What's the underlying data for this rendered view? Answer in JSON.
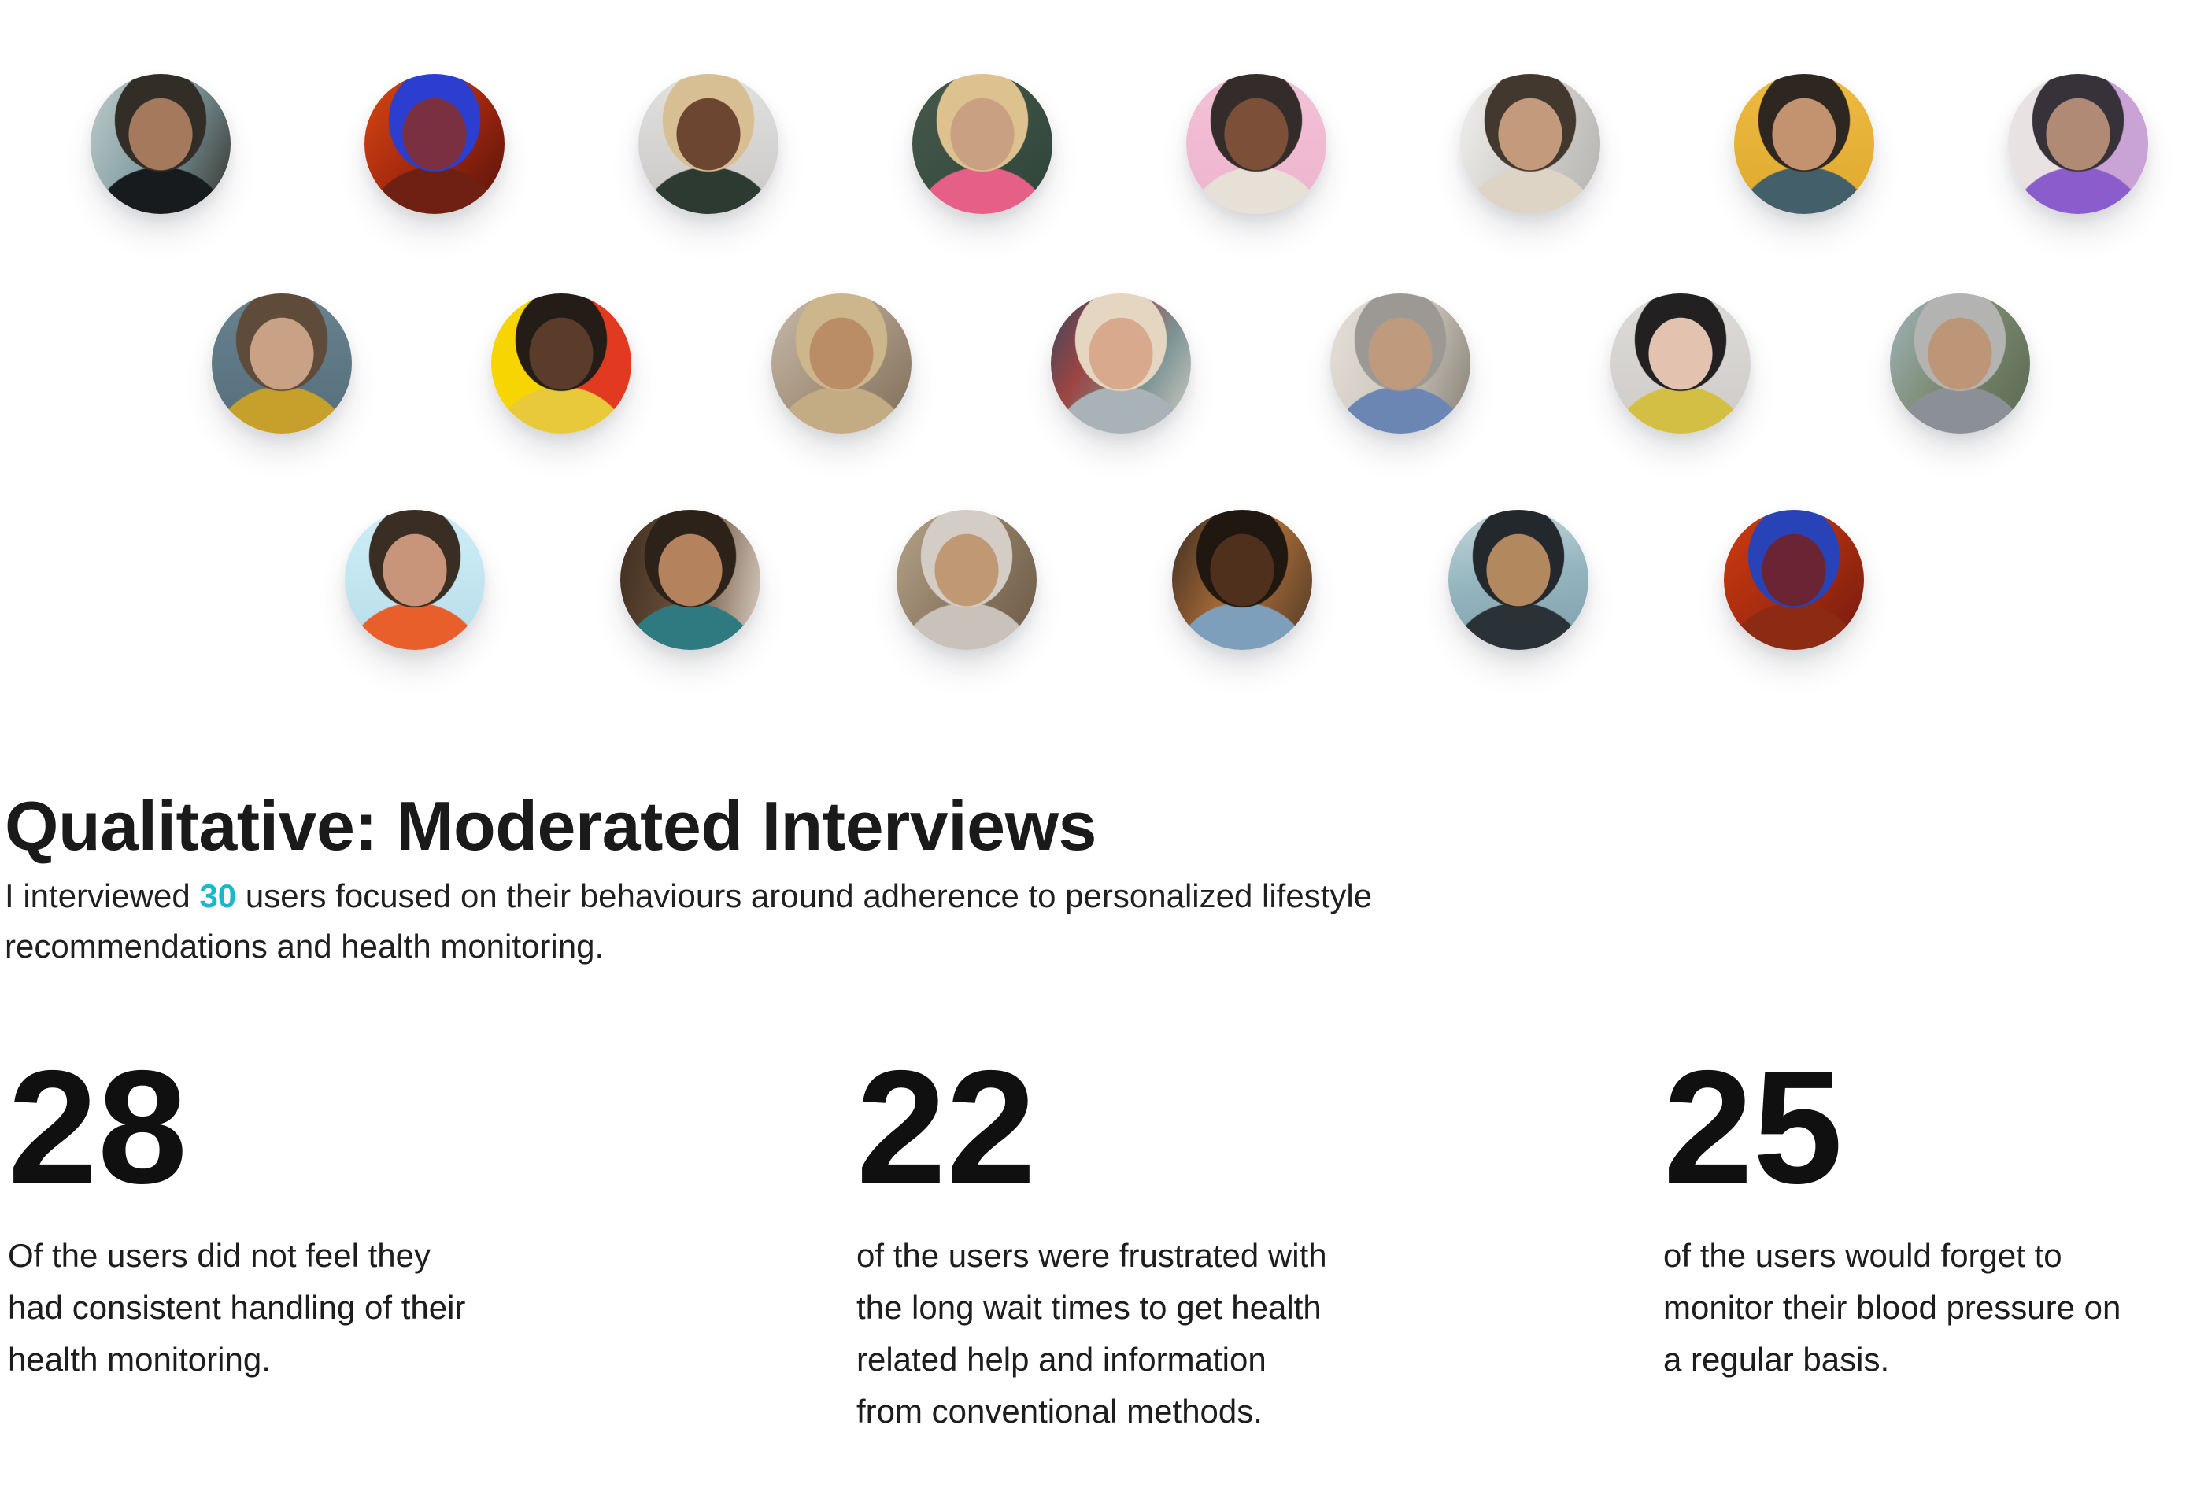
{
  "section": {
    "title": "Qualitative: Moderated Interviews",
    "intro": {
      "prefix": "I interviewed ",
      "highlight": "30",
      "highlight_color": "#1cb8c9",
      "suffix": " users focused on their behaviours around adherence to personalized lifestyle\nrecommendations and health monitoring."
    }
  },
  "stats": [
    {
      "value": "28",
      "description": "Of the users did not feel they\nhad consistent handling of their\nhealth monitoring."
    },
    {
      "value": "22",
      "description": "of the users were frustrated with\nthe long wait times to get health\nrelated help and information\nfrom conventional methods."
    },
    {
      "value": "25",
      "description": "of the users would forget to\nmonitor their blood pressure on\na regular basis."
    }
  ],
  "avatars": {
    "count": 21,
    "rows": [
      [
        {
          "desc": "woman with wet dark hair at the beach",
          "skin": "#a4795c",
          "hair": "#332d27",
          "top": "#171b1e",
          "bg": [
            "#c2cccc",
            "#7e9da1",
            "#35322c"
          ],
          "bg_angle": "115deg"
        },
        {
          "desc": "profile of woman with blue hair bun in red neon light",
          "skin": "#7a3040",
          "hair": "#2b3ed0",
          "top": "#6e2013",
          "bg": [
            "#d8490f",
            "#a3280f",
            "#55130b"
          ],
          "bg_angle": "130deg"
        },
        {
          "desc": "smiling woman with short blonde hair and hoop earrings on gray backdrop",
          "skin": "#6d4632",
          "hair": "#d8be93",
          "top": "#2c3a31",
          "bg": [
            "#e1e1df",
            "#c9c8c6"
          ],
          "bg_angle": "180deg"
        },
        {
          "desc": "woman with blonde afro against dark green wall",
          "skin": "#c9a182",
          "hair": "#ddc18e",
          "top": "#e65f86",
          "bg": [
            "#46594b",
            "#2f443a"
          ],
          "bg_angle": "135deg"
        },
        {
          "desc": "woman with sunglasses on her head against pink backdrop",
          "skin": "#7c5038",
          "hair": "#342c2b",
          "top": "#e7e0d6",
          "bg": [
            "#f3c2d7",
            "#edb4cd"
          ],
          "bg_angle": "180deg"
        },
        {
          "desc": "woman with long dark hair in bright white hallway",
          "skin": "#c49a7c",
          "hair": "#42382e",
          "top": "#ddd4c5",
          "bg": [
            "#f1f0ee",
            "#d2d0cd",
            "#b5b3b0"
          ],
          "bg_angle": "110deg"
        },
        {
          "desc": "smiling woman with long dark hair and red lips against yellow wall",
          "skin": "#c3926f",
          "hair": "#2e2721",
          "top": "#43606a",
          "bg": [
            "#eeba3f",
            "#dfa930"
          ],
          "bg_angle": "180deg"
        },
        {
          "desc": "woman with dark hair and sunglasses in purple outfit",
          "skin": "#b08a74",
          "hair": "#37323a",
          "top": "#8a5ccc",
          "bg": [
            "#e8e3e2",
            "#c9a2d6"
          ],
          "bg_split": true
        }
      ],
      [
        {
          "desc": "woman with brown hair in mustard shirt on slate blue backdrop",
          "skin": "#c9a184",
          "hair": "#5f4b39",
          "top": "#c7a02b",
          "bg": [
            "#68838f",
            "#546d7b"
          ],
          "bg_angle": "180deg"
        },
        {
          "desc": "woman in yellow plaid with sunglasses on yellow and red backdrop",
          "skin": "#5b3b29",
          "hair": "#241d17",
          "top": "#e7c93a",
          "bg": [
            "#f6d503",
            "#e23a20"
          ],
          "bg_split": true
        },
        {
          "desc": "smiling woman in gold headscarf on city street",
          "skin": "#bb8d66",
          "hair": "#cdb68c",
          "top": "#c3ac83",
          "bg": [
            "#c8baaa",
            "#a5947f",
            "#7d6c58"
          ],
          "bg_angle": "135deg"
        },
        {
          "desc": "older woman with platinum curls, cat-eye glasses and red necklace",
          "skin": "#d8a98c",
          "hair": "#e5d6c2",
          "top": "#a9b2b7",
          "bg": [
            "#39465e",
            "#9c4543",
            "#7d9494",
            "#d6d0c6"
          ],
          "bg_angle": "120deg"
        },
        {
          "desc": "older woman with gray hair in blue patterned blouse indoors",
          "skin": "#c09a7d",
          "hair": "#9c9995",
          "top": "#6b86b2",
          "bg": [
            "#e5e1d9",
            "#cfc9bf",
            "#847e74"
          ],
          "bg_angle": "110deg"
        },
        {
          "desc": "woman with black hair flying up wearing yellow floral dress",
          "skin": "#e3c2b0",
          "hair": "#232021",
          "top": "#d4bf45",
          "bg": [
            "#dddbd9",
            "#cecbc8"
          ],
          "bg_angle": "180deg"
        },
        {
          "desc": "smiling woman with long gray hair outdoors",
          "skin": "#bd9678",
          "hair": "#b3b3b1",
          "top": "#8b9097",
          "bg": [
            "#a2b5bd",
            "#78886c",
            "#596851"
          ],
          "bg_angle": "120deg"
        }
      ],
      [
        {
          "desc": "woman in orange sweater with arms behind head under blue sky",
          "skin": "#c9957a",
          "hair": "#3a2d23",
          "top": "#e95f2b",
          "bg": [
            "#cdeef7",
            "#b8dde9"
          ],
          "bg_angle": "180deg"
        },
        {
          "desc": "smiling woman with long dark hair leaning on her hand indoors",
          "skin": "#b5825e",
          "hair": "#2c2219",
          "top": "#2f7a80",
          "bg": [
            "#402e20",
            "#6b503a",
            "#d9cfc3"
          ],
          "bg_angle": "100deg"
        },
        {
          "desc": "young woman in light gray hijab on city street",
          "skin": "#c09873",
          "hair": "#d3cdc6",
          "top": "#c9c2ba",
          "bg": [
            "#b5a38c",
            "#8d7a62",
            "#6b5a48"
          ],
          "bg_angle": "120deg"
        },
        {
          "desc": "woman with afro and glasses in denim shirt on city street",
          "skin": "#4f301d",
          "hair": "#201710",
          "top": "#7e9fbc",
          "bg": [
            "#3a2c22",
            "#b06f38",
            "#4f3a28"
          ],
          "bg_angle": "115deg"
        },
        {
          "desc": "woman with wet dark hair by the sea",
          "skin": "#b2885f",
          "hair": "#23282c",
          "top": "#2b3237",
          "bg": [
            "#c5d7db",
            "#93b4bd",
            "#7fa0ab"
          ],
          "bg_angle": "170deg"
        },
        {
          "desc": "profile of woman with blue hair bun and glasses in red neon light",
          "skin": "#6b2433",
          "hair": "#2843b8",
          "top": "#8c2a14",
          "bg": [
            "#cf3c0e",
            "#a72c10",
            "#701b0e"
          ],
          "bg_angle": "135deg"
        }
      ]
    ]
  }
}
